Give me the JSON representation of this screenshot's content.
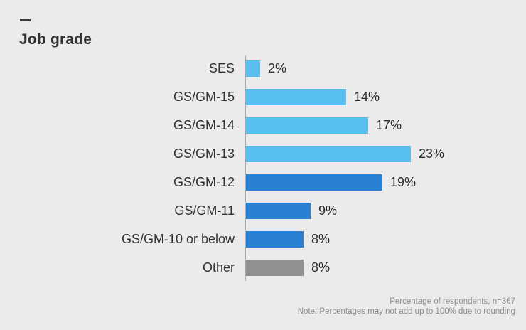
{
  "title": "Job grade",
  "chart_data": {
    "type": "bar",
    "orientation": "horizontal",
    "title": "Job grade",
    "xlabel": "",
    "ylabel": "",
    "xlim": [
      0,
      25
    ],
    "grid": false,
    "legend": "none",
    "categories": [
      "SES",
      "GS/GM-15",
      "GS/GM-14",
      "GS/GM-13",
      "GS/GM-12",
      "GS/GM-11",
      "GS/GM-10 or below",
      "Other"
    ],
    "values": [
      2,
      14,
      17,
      23,
      19,
      9,
      8,
      8
    ],
    "value_labels": [
      "2%",
      "14%",
      "17%",
      "23%",
      "19%",
      "9%",
      "8%",
      "8%"
    ],
    "bar_color_keys": [
      "light_blue",
      "light_blue",
      "light_blue",
      "light_blue",
      "dark_blue",
      "dark_blue",
      "dark_blue",
      "gray"
    ]
  },
  "colors": {
    "light_blue": "#58BFF0",
    "dark_blue": "#2A80D2",
    "gray": "#919191",
    "background": "#EBEBEB",
    "axis": "#A9A9A9",
    "text": "#333333",
    "footnote": "#8C8C8C"
  },
  "footnote": {
    "line1": "Percentage of respondents, n=367",
    "line2": "Note: Percentages may not add up to 100% due to rounding"
  }
}
